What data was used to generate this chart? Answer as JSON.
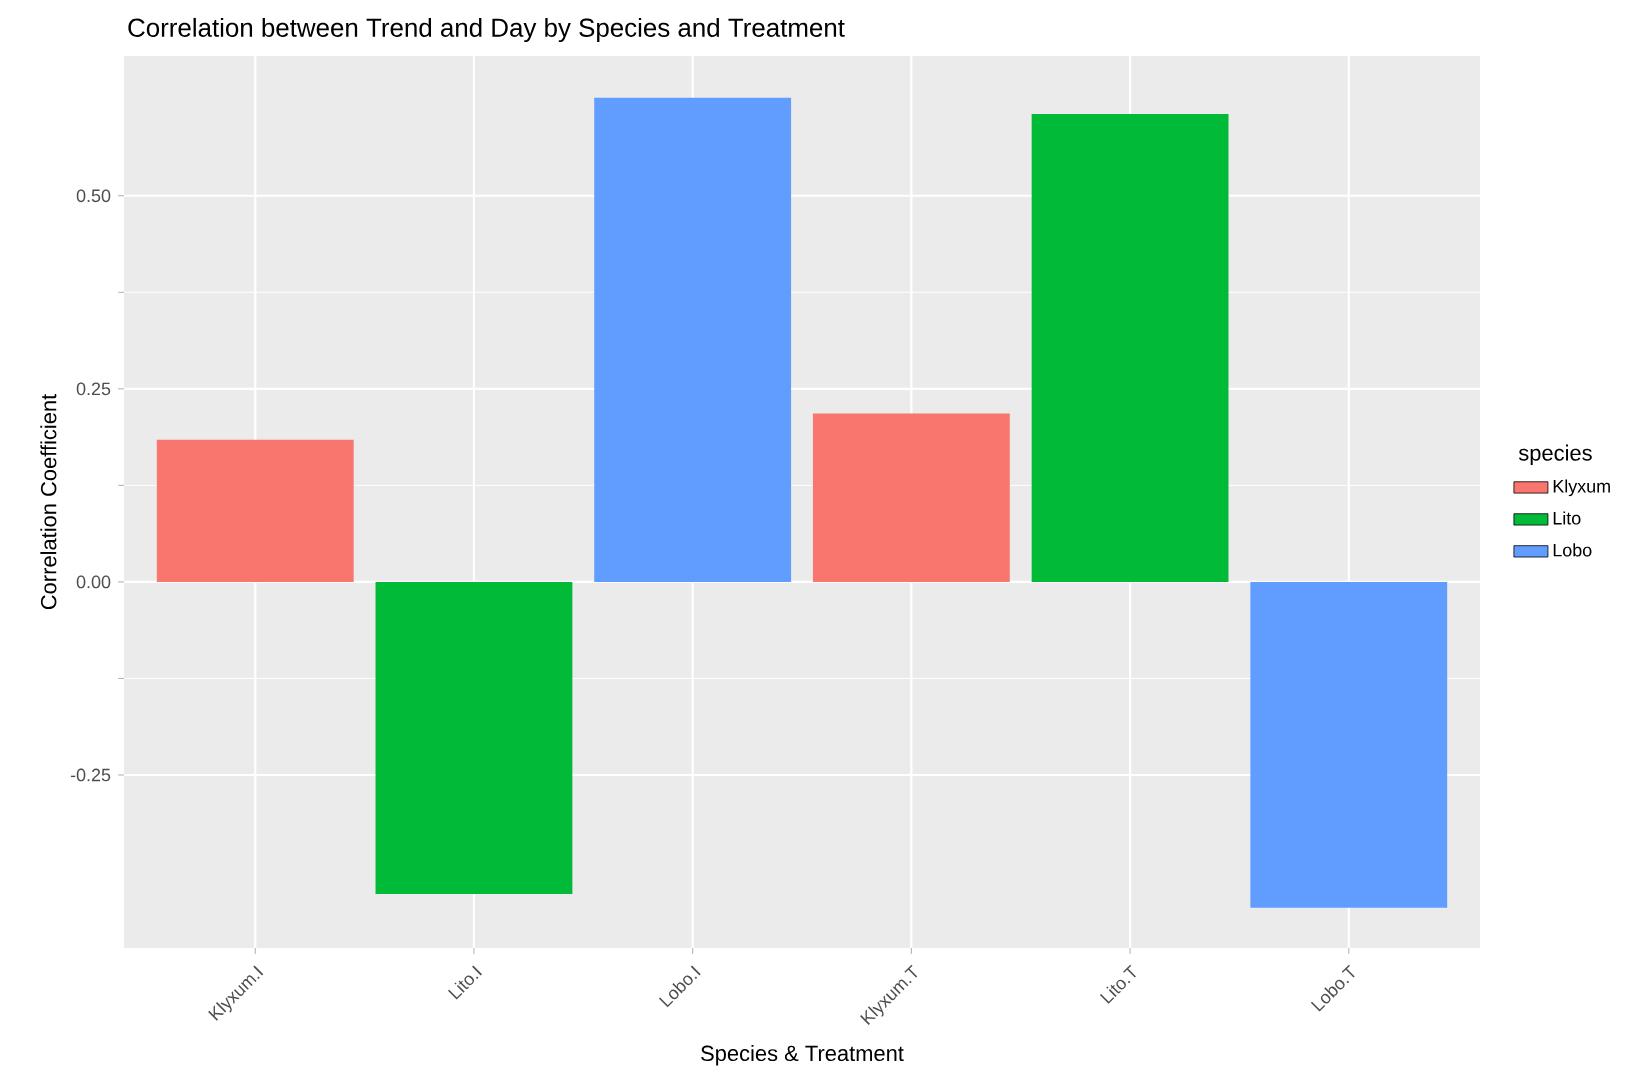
{
  "chart_data": {
    "type": "bar",
    "title": "Correlation between Trend and Day by Species and Treatment",
    "xlabel": "Species & Treatment",
    "ylabel": "Correlation Coefficient",
    "legend_title": "species",
    "categories": [
      "Klyxum.I",
      "Lito.I",
      "Lobo.I",
      "Klyxum.T",
      "Lito.T",
      "Lobo.T"
    ],
    "series": [
      {
        "name": "Klyxum",
        "color": "#f8766d",
        "values": [
          0.184,
          null,
          null,
          0.218,
          null,
          null
        ]
      },
      {
        "name": "Lito",
        "color": "#00ba38",
        "values": [
          null,
          -0.404,
          null,
          null,
          0.606,
          null
        ]
      },
      {
        "name": "Lobo",
        "color": "#619cff",
        "values": [
          null,
          null,
          0.627,
          null,
          null,
          -0.422
        ]
      }
    ],
    "ylim": [
      -0.474,
      0.681
    ],
    "yticks": [
      {
        "value": -0.25,
        "label": "-0.25"
      },
      {
        "value": 0,
        "label": "0.00"
      },
      {
        "value": 0.25,
        "label": "0.25"
      },
      {
        "value": 0.5,
        "label": "0.50"
      }
    ],
    "grid": true,
    "legend": "right"
  }
}
